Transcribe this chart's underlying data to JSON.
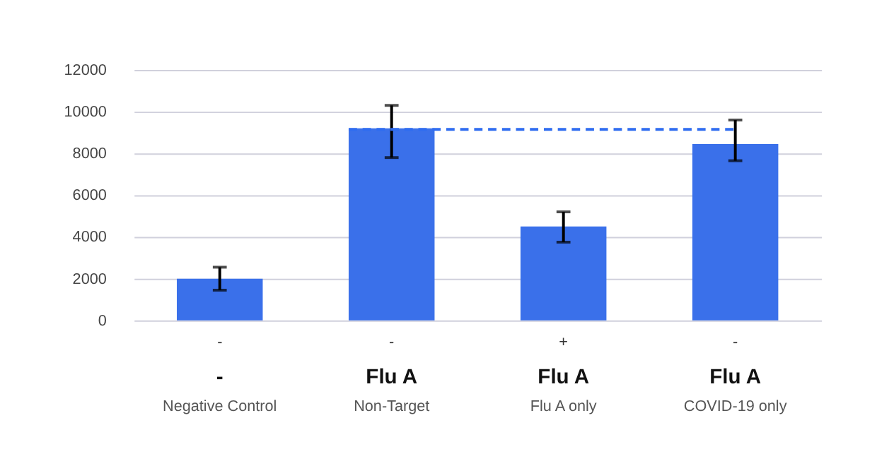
{
  "chart_data": {
    "type": "bar",
    "categories": [
      "-\n-\nNegative Control",
      "-\nFlu A\nNon-Target",
      "+\nFlu A\nFlu A only",
      "-\nFlu A\nCOVID-19 only"
    ],
    "values": [
      2000,
      9200,
      4500,
      8450
    ],
    "errors": [
      [
        1450,
        2550
      ],
      [
        7800,
        10300
      ],
      [
        3750,
        5200
      ],
      [
        7650,
        9600
      ]
    ],
    "color": "#3a70ea",
    "ylim": [
      0,
      12000
    ],
    "yticks": [
      0,
      2000,
      4000,
      6000,
      8000,
      10000,
      12000
    ],
    "grid": "y",
    "ref_lines": [
      {
        "axis": "y",
        "value": 9150,
        "label": null,
        "color": "#2f6cf0",
        "line_style": "dashed"
      }
    ]
  }
}
